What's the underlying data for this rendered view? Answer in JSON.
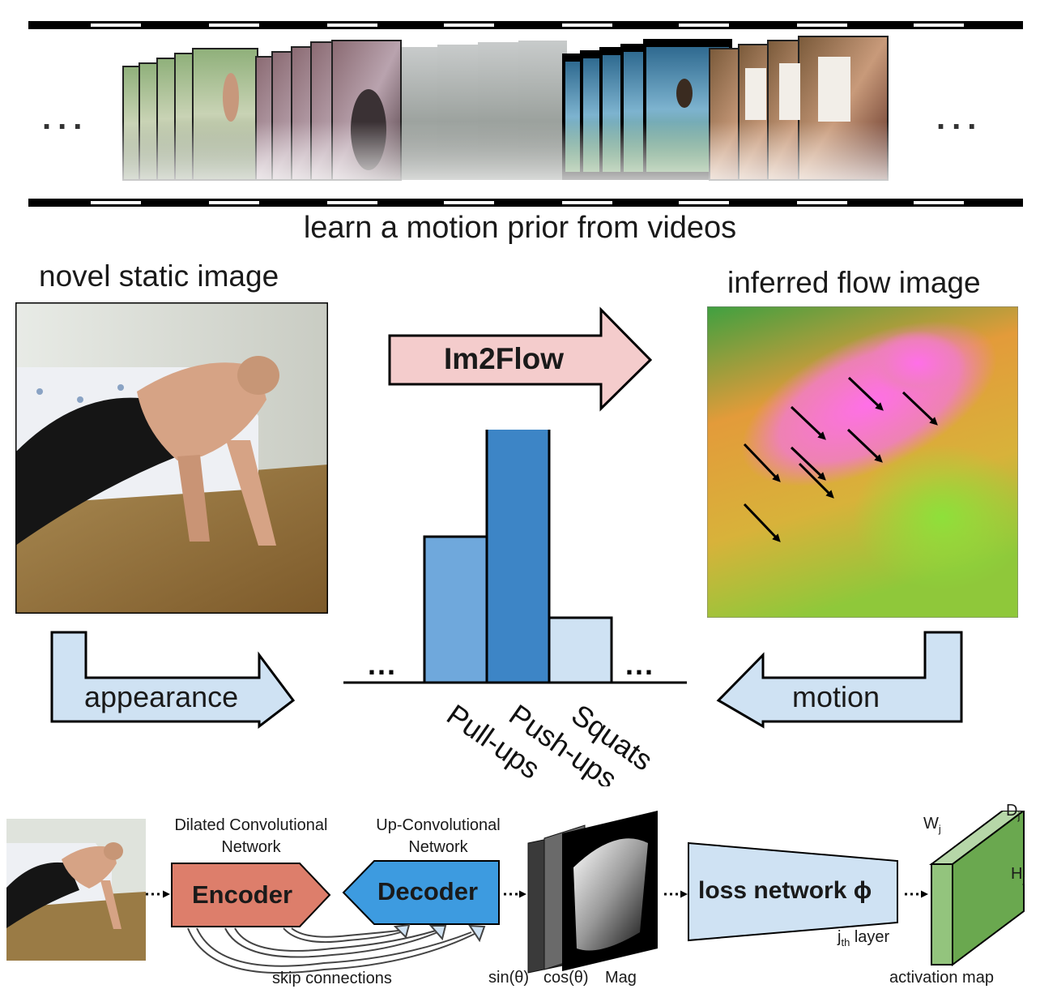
{
  "filmstrip": {
    "caption": "learn a motion prior from videos",
    "left_ellipsis": "...",
    "right_ellipsis": "..."
  },
  "static_image": {
    "label": "novel static image"
  },
  "flow_image": {
    "label": "inferred flow image"
  },
  "im2flow_arrow": {
    "label": "Im2Flow"
  },
  "appearance_arrow": {
    "label": "appearance"
  },
  "motion_arrow": {
    "label": "motion"
  },
  "chart_data": {
    "type": "bar",
    "categories": [
      "Pull-ups",
      "Push-ups",
      "Squats"
    ],
    "values": [
      0.45,
      0.79,
      0.2
    ],
    "leading_ellipsis": "...",
    "trailing_ellipsis": "...",
    "colors": [
      "#6fa8dc",
      "#3d85c6",
      "#cfe2f3"
    ]
  },
  "pipeline": {
    "encoder_caption_line1": "Dilated Convolutional",
    "encoder_caption_line2": "Network",
    "encoder_label": "Encoder",
    "decoder_caption_line1": "Up-Convolutional",
    "decoder_caption_line2": "Network",
    "decoder_label": "Decoder",
    "skip_label": "skip connections",
    "channel_labels": [
      "sin(θ)",
      "cos(θ)",
      "Mag"
    ],
    "loss_label": "loss network ϕ",
    "layer_label_main": "j",
    "layer_label_sub": "th",
    "layer_label_rest": " layer",
    "activation_label": "activation map",
    "dim_w": "W",
    "dim_d": "D",
    "dim_h": "H",
    "dim_sub": "j"
  },
  "colors": {
    "im2flow_fill": "#f4cccc",
    "arrow_fill": "#cfe2f3",
    "encoder_fill": "#dd7e6b",
    "decoder_fill": "#3d9be0",
    "loss_fill": "#cfe2f3",
    "activation_fill": "#93c47d"
  }
}
